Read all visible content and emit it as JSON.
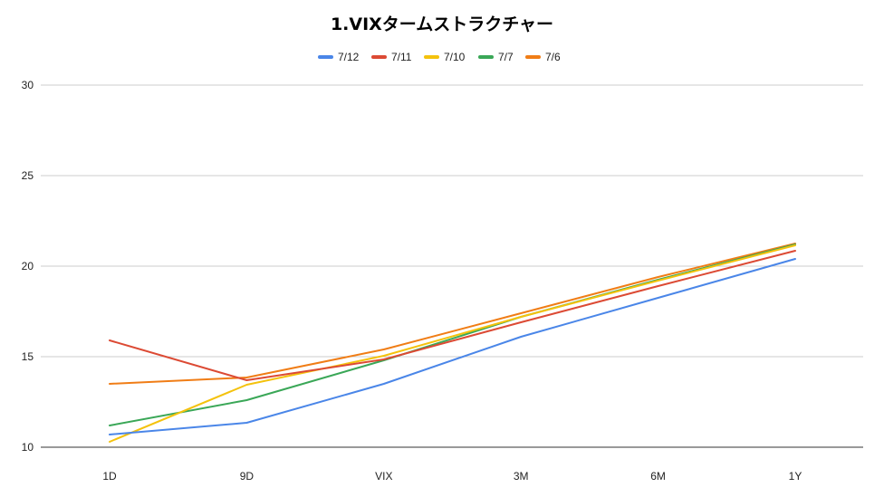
{
  "chart_data": {
    "type": "line",
    "title": "1.VIXタームストラクチャー",
    "xlabel": "",
    "ylabel": "",
    "categories": [
      "1D",
      "9D",
      "VIX",
      "3M",
      "6M",
      "1Y"
    ],
    "ylim": [
      10,
      30
    ],
    "yticks": [
      10,
      15,
      20,
      25,
      30
    ],
    "grid": true,
    "legend_position": "top",
    "series": [
      {
        "name": "7/12",
        "color": "#4a86e8",
        "values": [
          10.7,
          11.35,
          13.5,
          16.1,
          18.25,
          20.4
        ]
      },
      {
        "name": "7/11",
        "color": "#dc4a34",
        "values": [
          15.9,
          13.7,
          14.85,
          16.9,
          18.9,
          20.85
        ]
      },
      {
        "name": "7/10",
        "color": "#f4c20d",
        "values": [
          10.3,
          13.45,
          15.05,
          17.2,
          19.2,
          21.15
        ]
      },
      {
        "name": "7/7",
        "color": "#3aa757",
        "values": [
          11.2,
          12.6,
          14.8,
          17.2,
          19.25,
          21.2
        ]
      },
      {
        "name": "7/6",
        "color": "#f07d16",
        "values": [
          13.5,
          13.85,
          15.4,
          17.4,
          19.4,
          21.25
        ]
      }
    ]
  }
}
